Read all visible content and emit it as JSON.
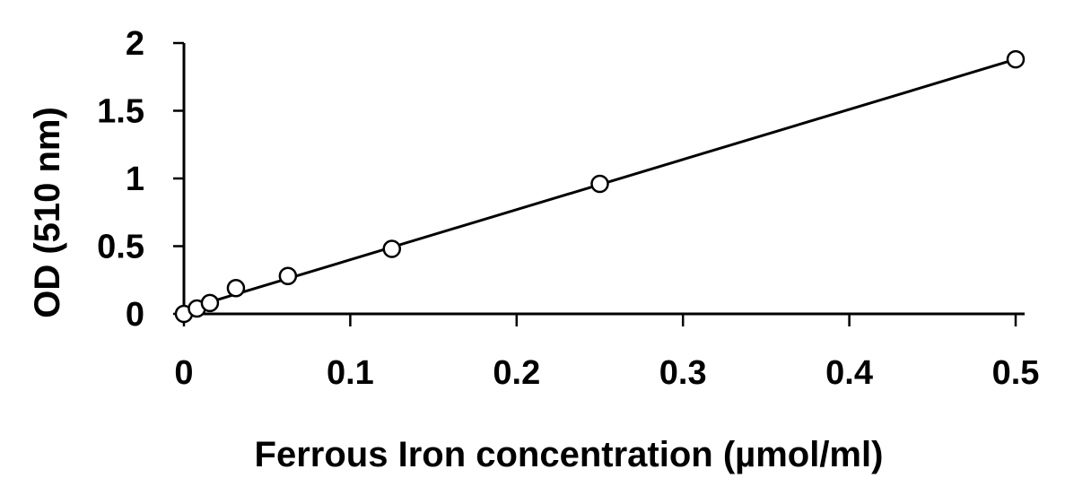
{
  "chart_data": {
    "type": "scatter",
    "title": "",
    "xlabel": "Ferrous Iron concentration (µmol/ml)",
    "ylabel": "OD (510 nm)",
    "xlim": [
      0,
      0.5
    ],
    "ylim": [
      0,
      2
    ],
    "x_ticks": [
      "0",
      "0.1",
      "0.2",
      "0.3",
      "0.4",
      "0.5"
    ],
    "y_ticks": [
      "0",
      "0.5",
      "1",
      "1.5",
      "2"
    ],
    "grid": false,
    "legend": "none",
    "series": [
      {
        "marker": "open-circle",
        "points": [
          {
            "x": 0,
            "y": 0.0
          },
          {
            "x": 0.0078,
            "y": 0.04
          },
          {
            "x": 0.0156,
            "y": 0.08
          },
          {
            "x": 0.03125,
            "y": 0.19
          },
          {
            "x": 0.0625,
            "y": 0.28
          },
          {
            "x": 0.125,
            "y": 0.48
          },
          {
            "x": 0.25,
            "y": 0.96
          },
          {
            "x": 0.5,
            "y": 1.88
          }
        ]
      }
    ],
    "trendline": {
      "type": "linear",
      "from": {
        "x": 0,
        "y": 0.03
      },
      "to": {
        "x": 0.5,
        "y": 1.88
      }
    },
    "colors": {
      "marker_stroke": "#000000",
      "marker_fill": "#ffffff",
      "line": "#000000",
      "axis": "#000000"
    }
  }
}
